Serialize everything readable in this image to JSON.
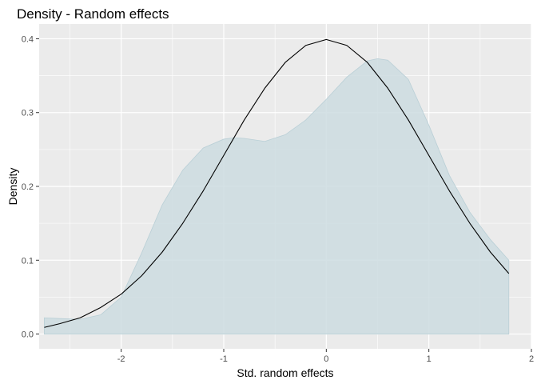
{
  "chart_data": {
    "type": "area",
    "title": "Density - Random effects",
    "xlabel": "Std. random effects",
    "ylabel": "Density",
    "xlim": [
      -2.8,
      2.0
    ],
    "ylim": [
      -0.02,
      0.42
    ],
    "x_ticks": [
      -2,
      -1,
      0,
      1,
      2
    ],
    "y_ticks": [
      0.0,
      0.1,
      0.2,
      0.3,
      0.4
    ],
    "x_tick_labels": [
      "-2",
      "-1",
      "0",
      "1",
      "2"
    ],
    "y_tick_labels": [
      "0.0",
      "0.1",
      "0.2",
      "0.3",
      "0.4"
    ],
    "grid": true,
    "colors": {
      "panel_background": "#EBEBEB",
      "grid_major": "#FFFFFF",
      "density_fill": "#CCDCE1",
      "density_outline": "#B9CFD6",
      "normal_curve": "#000000"
    },
    "series": [
      {
        "kind": "area",
        "x": [
          -2.75,
          -2.6,
          -2.4,
          -2.2,
          -2.0,
          -1.8,
          -1.6,
          -1.4,
          -1.2,
          -1.0,
          -0.9,
          -0.8,
          -0.6,
          -0.4,
          -0.2,
          0.0,
          0.2,
          0.4,
          0.5,
          0.6,
          0.8,
          1.0,
          1.2,
          1.4,
          1.6,
          1.78
        ],
        "y": [
          0.022,
          0.021,
          0.02,
          0.026,
          0.05,
          0.11,
          0.175,
          0.222,
          0.252,
          0.264,
          0.266,
          0.265,
          0.261,
          0.27,
          0.29,
          0.318,
          0.348,
          0.37,
          0.373,
          0.371,
          0.345,
          0.283,
          0.215,
          0.165,
          0.128,
          0.1
        ]
      },
      {
        "kind": "line",
        "x": [
          -2.75,
          -2.6,
          -2.4,
          -2.2,
          -2.0,
          -1.8,
          -1.6,
          -1.4,
          -1.2,
          -1.0,
          -0.8,
          -0.6,
          -0.4,
          -0.2,
          0.0,
          0.2,
          0.4,
          0.6,
          0.8,
          1.0,
          1.2,
          1.4,
          1.6,
          1.78
        ],
        "y": [
          0.009,
          0.014,
          0.022,
          0.036,
          0.054,
          0.079,
          0.111,
          0.15,
          0.194,
          0.242,
          0.29,
          0.333,
          0.368,
          0.391,
          0.399,
          0.391,
          0.368,
          0.333,
          0.29,
          0.242,
          0.194,
          0.15,
          0.111,
          0.082
        ]
      }
    ]
  }
}
